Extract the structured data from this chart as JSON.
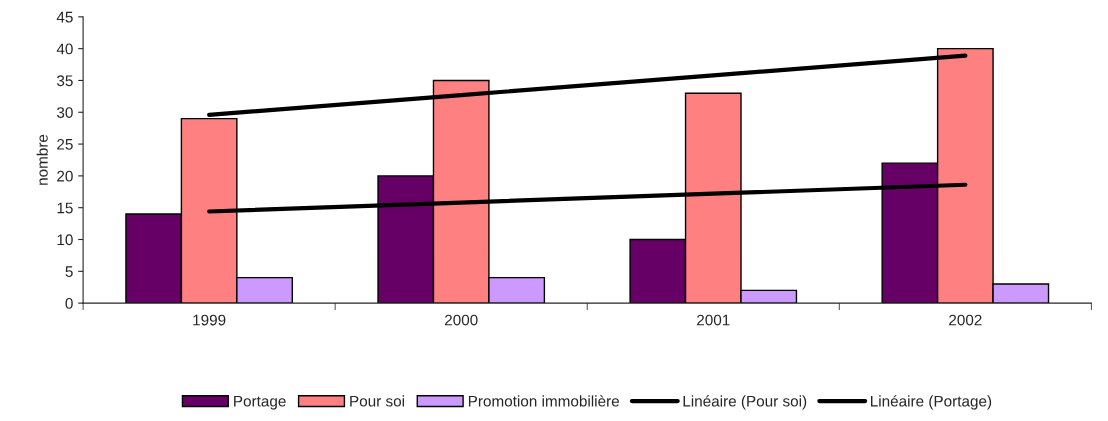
{
  "chart_data": {
    "type": "bar",
    "ylabel": "nombre",
    "categories": [
      "1999",
      "2000",
      "2001",
      "2002"
    ],
    "series": [
      {
        "name": "Portage",
        "color": "#660066",
        "values": [
          14,
          20,
          10,
          22
        ]
      },
      {
        "name": "Pour soi",
        "color": "#ff8080",
        "values": [
          29,
          35,
          33,
          40
        ]
      },
      {
        "name": "Promotion immobilière",
        "color": "#cc99ff",
        "values": [
          4,
          4,
          2,
          3
        ]
      },
      {
        "name": "Linéaire (Pour soi)",
        "type": "line",
        "color": "#000000",
        "values": [
          29.6,
          32.7,
          35.8,
          38.9
        ]
      },
      {
        "name": "Linéaire (Portage)",
        "type": "line",
        "color": "#000000",
        "values": [
          14.4,
          15.8,
          17.2,
          18.6
        ]
      }
    ],
    "ylim": [
      0,
      45
    ],
    "yticks": [
      0,
      5,
      10,
      15,
      20,
      25,
      30,
      35,
      40,
      45
    ],
    "grid": false,
    "legend": "bottom"
  }
}
